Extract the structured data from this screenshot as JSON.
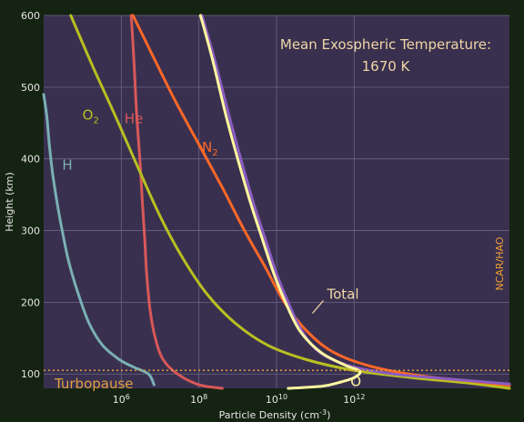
{
  "chart_data": {
    "type": "line",
    "title": "",
    "xlabel": "Particle Density (cm",
    "xlabel_exp": "-3",
    "xlabel_tail": ")",
    "ylabel": "Height (km)",
    "x_scale": "log",
    "xlim": [
      10000,
      10000000000000000
    ],
    "ylim": [
      80,
      600
    ],
    "x_ticks": [
      {
        "value": 1000000,
        "base": "10",
        "exp": "6"
      },
      {
        "value": 100000000,
        "base": "10",
        "exp": "8"
      },
      {
        "value": 10000000000,
        "base": "10",
        "exp": "10"
      },
      {
        "value": 1000000000000,
        "base": "10",
        "exp": "12"
      }
    ],
    "y_ticks": [
      {
        "value": 100,
        "label": "100"
      },
      {
        "value": 200,
        "label": "200"
      },
      {
        "value": 300,
        "label": "300"
      },
      {
        "value": 400,
        "label": "400"
      },
      {
        "value": 500,
        "label": "500"
      },
      {
        "value": 600,
        "label": "600"
      }
    ],
    "grid": true,
    "series": [
      {
        "name": "H",
        "sub": "",
        "color": "#7ab0b4",
        "label_x": 30000,
        "label_y": 385,
        "points": [
          [
            10000,
            490
          ],
          [
            12000,
            460
          ],
          [
            14000,
            420
          ],
          [
            17000,
            380
          ],
          [
            22000,
            340
          ],
          [
            30000,
            300
          ],
          [
            45000,
            255
          ],
          [
            80000,
            210
          ],
          [
            150000,
            170
          ],
          [
            330000,
            140
          ],
          [
            900000,
            120
          ],
          [
            2000000,
            110
          ],
          [
            5000000,
            100
          ],
          [
            7000000,
            85
          ]
        ]
      },
      {
        "name": "He",
        "sub": "",
        "color": "#d85858",
        "label_x": 1200000,
        "label_y": 450,
        "points": [
          [
            1800000,
            600
          ],
          [
            2000000,
            560
          ],
          [
            2200000,
            520
          ],
          [
            2500000,
            460
          ],
          [
            3000000,
            400
          ],
          [
            3500000,
            340
          ],
          [
            4000000,
            290
          ],
          [
            4500000,
            240
          ],
          [
            5500000,
            190
          ],
          [
            7500000,
            150
          ],
          [
            12000000,
            120
          ],
          [
            28000000,
            100
          ],
          [
            100000000,
            85
          ],
          [
            400000000,
            80
          ]
        ]
      },
      {
        "name": "O",
        "sub": "2",
        "color": "#b8c020",
        "label_x": 100000,
        "label_y": 455,
        "points": [
          [
            50000,
            600
          ],
          [
            180000,
            530
          ],
          [
            700000,
            460
          ],
          [
            2600000,
            390
          ],
          [
            10000000,
            320
          ],
          [
            40000000,
            260
          ],
          [
            170000000,
            210
          ],
          [
            900000000,
            170
          ],
          [
            6000000000,
            140
          ],
          [
            60000000000,
            120
          ],
          [
            1000000000000,
            105
          ],
          [
            30000000000000,
            95
          ],
          [
            1000000000000000,
            87
          ],
          [
            10000000000000000,
            80
          ]
        ]
      },
      {
        "name": "N",
        "sub": "2",
        "color": "#ff6828",
        "label_x": 120000000,
        "label_y": 410,
        "points": [
          [
            2000000,
            600
          ],
          [
            7000000,
            540
          ],
          [
            25000000,
            480
          ],
          [
            100000000,
            420
          ],
          [
            400000000,
            360
          ],
          [
            1500000000,
            300
          ],
          [
            5000000000,
            250
          ],
          [
            16000000000,
            200
          ],
          [
            60000000000,
            160
          ],
          [
            300000000000,
            130
          ],
          [
            3000000000000,
            110
          ],
          [
            60000000000000,
            97
          ],
          [
            1000000000000000,
            90
          ],
          [
            10000000000000000,
            84
          ]
        ]
      },
      {
        "name": "Total",
        "sub": "",
        "color": "#8a5cc0",
        "label_x": 200000000000,
        "label_y": 205,
        "points": [
          [
            120000000,
            600
          ],
          [
            250000000,
            540
          ],
          [
            600000000,
            460
          ],
          [
            1200000000,
            400
          ],
          [
            2500000000,
            340
          ],
          [
            5000000000,
            290
          ],
          [
            10000000000,
            240
          ],
          [
            20000000000,
            200
          ],
          [
            45000000000,
            160
          ],
          [
            130000000000,
            130
          ],
          [
            700000000000,
            112
          ],
          [
            10000000000000,
            100
          ],
          [
            300000000000000,
            93
          ],
          [
            10000000000000000,
            86
          ]
        ]
      },
      {
        "name": "O",
        "sub": "",
        "color": "#fff8a0",
        "label_x": 800000000000,
        "label_y": 83,
        "points": [
          [
            110000000,
            600
          ],
          [
            220000000,
            540
          ],
          [
            500000000,
            460
          ],
          [
            1000000000,
            400
          ],
          [
            2100000000,
            340
          ],
          [
            4200000000,
            290
          ],
          [
            8500000000,
            240
          ],
          [
            17000000000,
            200
          ],
          [
            40000000000,
            160
          ],
          [
            140000000000,
            130
          ],
          [
            600000000000,
            112
          ],
          [
            1400000000000,
            104
          ],
          [
            1000000000000,
            95
          ],
          [
            400000000000,
            88
          ],
          [
            150000000000,
            83
          ],
          [
            20000000000,
            80
          ]
        ]
      }
    ],
    "annotations": [
      {
        "text": "Mean Exospheric Temperature:"
      },
      {
        "text": "1670 K"
      },
      {
        "text": "NCAR/HAO"
      },
      {
        "text": "Turbopause",
        "y": 105
      }
    ]
  }
}
